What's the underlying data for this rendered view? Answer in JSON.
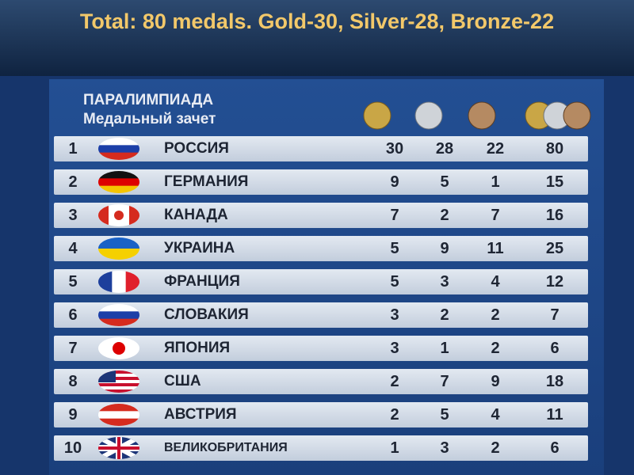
{
  "header": {
    "title": "Total: 80 medals. Gold-30, Silver-28, Bronze-22"
  },
  "table": {
    "heading": [
      "ПАРАЛИМПИАДА",
      "Медальный зачет"
    ],
    "rows": [
      [
        1,
        "РОССИЯ",
        30,
        28,
        22,
        80
      ],
      [
        2,
        "ГЕРМАНИЯ",
        9,
        5,
        1,
        15
      ],
      [
        3,
        "КАНАДА",
        7,
        2,
        7,
        16
      ],
      [
        4,
        "УКРАИНА",
        5,
        9,
        11,
        25
      ],
      [
        5,
        "ФРАНЦИЯ",
        5,
        3,
        4,
        12
      ],
      [
        6,
        "СЛОВАКИЯ",
        3,
        2,
        2,
        7
      ],
      [
        7,
        "ЯПОНИЯ",
        3,
        1,
        2,
        6
      ],
      [
        8,
        "США",
        2,
        7,
        9,
        18
      ],
      [
        9,
        "АВСТРИЯ",
        2,
        5,
        4,
        11
      ],
      [
        10,
        "ВЕЛИКОБРИТАНИЯ",
        1,
        3,
        2,
        6
      ]
    ]
  }
}
